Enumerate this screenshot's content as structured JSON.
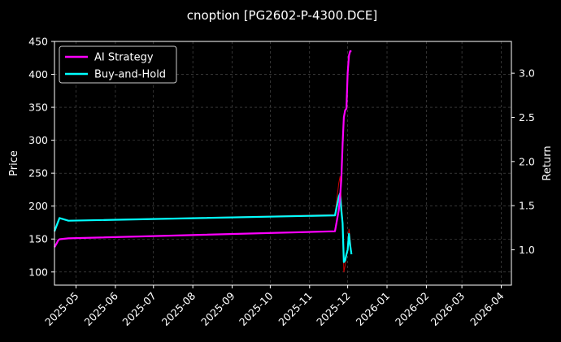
{
  "chart_data": {
    "type": "line",
    "title": "cnoption [PG2602-P-4300.DCE]",
    "ylabel_left": "Price",
    "ylabel_right": "Return",
    "grid": true,
    "legend_position": "top-left",
    "x_ticks": [
      "2025-05",
      "2025-06",
      "2025-07",
      "2025-08",
      "2025-09",
      "2025-10",
      "2025-11",
      "2025-12",
      "2026-01",
      "2026-02",
      "2026-03",
      "2026-04"
    ],
    "y_left": {
      "range": [
        80,
        450
      ],
      "ticks": [
        "100",
        "150",
        "200",
        "250",
        "300",
        "350",
        "400",
        "450"
      ]
    },
    "y_right": {
      "range": [
        0.6,
        3.36
      ],
      "ticks": [
        "1.0",
        "1.5",
        "2.0",
        "2.5",
        "3.0"
      ]
    },
    "x_range": [
      "2025-04-14",
      "2026-04-09"
    ],
    "series": [
      {
        "name": "AI Strategy",
        "axis": "right",
        "color": "#ff00ff",
        "points": [
          [
            "2025-04-14",
            1.03
          ],
          [
            "2025-04-16",
            1.08
          ],
          [
            "2025-04-17",
            1.11
          ],
          [
            "2025-04-18",
            1.12
          ],
          [
            "2025-04-25",
            1.13
          ],
          [
            "2025-11-21",
            1.21
          ],
          [
            "2025-11-24",
            1.45
          ],
          [
            "2025-11-25",
            1.6
          ],
          [
            "2025-11-26",
            1.8
          ],
          [
            "2025-11-27",
            2.2
          ],
          [
            "2025-11-28",
            2.5
          ],
          [
            "2025-11-29",
            2.58
          ],
          [
            "2025-11-30",
            2.6
          ],
          [
            "2025-12-01",
            3.0
          ],
          [
            "2025-12-02",
            3.2
          ],
          [
            "2025-12-03",
            3.25
          ],
          [
            "2025-12-04",
            3.25
          ]
        ]
      },
      {
        "name": "Buy-and-Hold",
        "axis": "right",
        "color": "#00ffff",
        "points": [
          [
            "2025-04-14",
            1.21
          ],
          [
            "2025-04-18",
            1.36
          ],
          [
            "2025-04-25",
            1.33
          ],
          [
            "2025-11-21",
            1.39
          ],
          [
            "2025-11-24",
            1.6
          ],
          [
            "2025-11-25",
            1.64
          ],
          [
            "2025-11-26",
            1.45
          ],
          [
            "2025-11-27",
            1.3
          ],
          [
            "2025-11-28",
            0.86
          ],
          [
            "2025-11-29",
            0.88
          ],
          [
            "2025-11-30",
            0.95
          ],
          [
            "2025-12-01",
            1.0
          ],
          [
            "2025-12-02",
            1.18
          ],
          [
            "2025-12-03",
            1.05
          ],
          [
            "2025-12-04",
            0.95
          ]
        ]
      },
      {
        "name": "Price",
        "axis": "left",
        "color": "#cc0000",
        "points": [
          [
            "2025-04-14",
            160
          ],
          [
            "2025-04-18",
            182
          ],
          [
            "2025-04-25",
            178
          ],
          [
            "2025-11-21",
            187
          ],
          [
            "2025-11-24",
            235
          ],
          [
            "2025-11-25",
            245
          ],
          [
            "2025-11-26",
            210
          ],
          [
            "2025-11-27",
            180
          ],
          [
            "2025-11-28",
            100
          ],
          [
            "2025-11-29",
            110
          ],
          [
            "2025-11-30",
            125
          ],
          [
            "2025-12-01",
            135
          ],
          [
            "2025-12-02",
            165
          ],
          [
            "2025-12-03",
            150
          ],
          [
            "2025-12-04",
            130
          ]
        ]
      }
    ],
    "legend": [
      "AI Strategy",
      "Buy-and-Hold"
    ]
  }
}
